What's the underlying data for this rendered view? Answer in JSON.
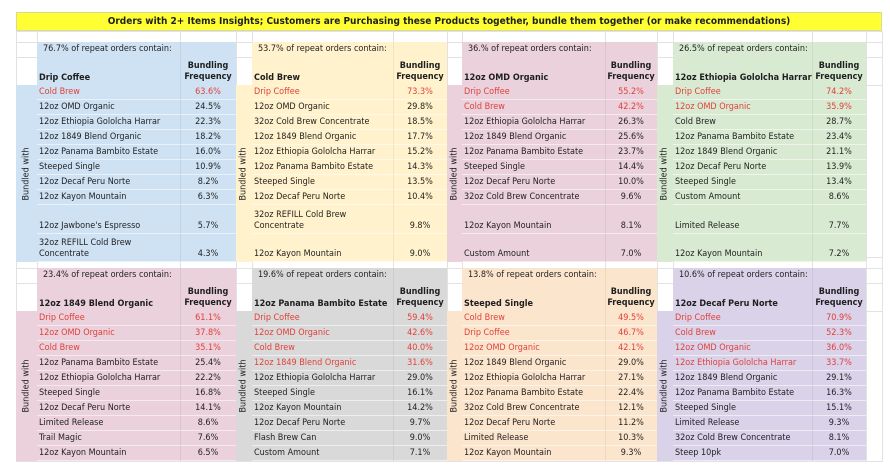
{
  "title": "Orders with 2+ Items Insights; Customers are Purchasing these Products together, bundle them together (or make recommendations)",
  "side_label": "Bundled with",
  "freq_header": "Bundling Frequency",
  "colors": {
    "title_bg": "#ffff33",
    "highlight_text": "#e0403a",
    "blue": "#cfe2f3",
    "yellow": "#fff2cc",
    "pink": "#ead1dc",
    "green": "#d9ead3",
    "gray": "#d9d9d9",
    "orange": "#fce5cd",
    "purple": "#d9d2e9"
  },
  "panels": [
    {
      "product": "Drip Coffee",
      "share": "76.7% of repeat orders contain:",
      "color": "blue",
      "items": [
        {
          "name": "Cold Brew",
          "freq": "63.6%",
          "highlight": true
        },
        {
          "name": "12oz OMD Organic",
          "freq": "24.5%",
          "highlight": false
        },
        {
          "name": "12oz Ethiopia Gololcha Harrar",
          "freq": "22.3%",
          "highlight": false
        },
        {
          "name": "12oz 1849 Blend Organic",
          "freq": "18.2%",
          "highlight": false
        },
        {
          "name": "12oz Panama Bambito Estate",
          "freq": "16.0%",
          "highlight": false
        },
        {
          "name": "Steeped Single",
          "freq": "10.9%",
          "highlight": false
        },
        {
          "name": "12oz Decaf Peru Norte",
          "freq": "8.2%",
          "highlight": false
        },
        {
          "name": "12oz Kayon Mountain",
          "freq": "6.3%",
          "highlight": false
        },
        {
          "name": "12oz Jawbone's Espresso",
          "freq": "5.7%",
          "highlight": false
        },
        {
          "name": "32oz REFILL Cold Brew\nConcentrate",
          "freq": "4.3%",
          "highlight": false
        }
      ]
    },
    {
      "product": "Cold Brew",
      "share": "53.7% of repeat orders contain:",
      "color": "yellow",
      "items": [
        {
          "name": "Drip Coffee",
          "freq": "73.3%",
          "highlight": true
        },
        {
          "name": "12oz OMD Organic",
          "freq": "29.8%",
          "highlight": false
        },
        {
          "name": "32oz Cold Brew Concentrate",
          "freq": "18.5%",
          "highlight": false
        },
        {
          "name": "12oz 1849 Blend Organic",
          "freq": "17.7%",
          "highlight": false
        },
        {
          "name": "12oz Ethiopia Gololcha Harrar",
          "freq": "15.2%",
          "highlight": false
        },
        {
          "name": "12oz Panama Bambito Estate",
          "freq": "14.3%",
          "highlight": false
        },
        {
          "name": "Steeped Single",
          "freq": "13.5%",
          "highlight": false
        },
        {
          "name": "12oz Decaf Peru Norte",
          "freq": "10.4%",
          "highlight": false
        },
        {
          "name": "32oz REFILL Cold Brew\nConcentrate",
          "freq": "9.8%",
          "highlight": false
        },
        {
          "name": "12oz Kayon Mountain",
          "freq": "9.0%",
          "highlight": false
        }
      ]
    },
    {
      "product": "12oz OMD Organic",
      "share": "36.% of repeat orders contain:",
      "color": "pink",
      "items": [
        {
          "name": "Drip Coffee",
          "freq": "55.2%",
          "highlight": true
        },
        {
          "name": "Cold Brew",
          "freq": "42.2%",
          "highlight": true
        },
        {
          "name": "12oz Ethiopia Gololcha Harrar",
          "freq": "26.3%",
          "highlight": false
        },
        {
          "name": "12oz 1849 Blend Organic",
          "freq": "25.6%",
          "highlight": false
        },
        {
          "name": "12oz Panama Bambito Estate",
          "freq": "23.7%",
          "highlight": false
        },
        {
          "name": "Steeped Single",
          "freq": "14.4%",
          "highlight": false
        },
        {
          "name": "12oz Decaf Peru Norte",
          "freq": "10.0%",
          "highlight": false
        },
        {
          "name": "32oz Cold Brew Concentrate",
          "freq": "9.6%",
          "highlight": false
        },
        {
          "name": "12oz Kayon Mountain",
          "freq": "8.1%",
          "highlight": false
        },
        {
          "name": "Custom Amount",
          "freq": "7.0%",
          "highlight": false
        }
      ]
    },
    {
      "product": "12oz Ethiopia Gololcha Harrar",
      "share": "26.5% of repeat orders contain:",
      "color": "green",
      "items": [
        {
          "name": "Drip Coffee",
          "freq": "74.2%",
          "highlight": true
        },
        {
          "name": "12oz OMD Organic",
          "freq": "35.9%",
          "highlight": true
        },
        {
          "name": "Cold Brew",
          "freq": "28.7%",
          "highlight": false
        },
        {
          "name": "12oz Panama Bambito Estate",
          "freq": "23.4%",
          "highlight": false
        },
        {
          "name": "12oz 1849 Blend Organic",
          "freq": "21.1%",
          "highlight": false
        },
        {
          "name": "12oz Decaf Peru Norte",
          "freq": "13.9%",
          "highlight": false
        },
        {
          "name": "Steeped Single",
          "freq": "13.4%",
          "highlight": false
        },
        {
          "name": "Custom Amount",
          "freq": "8.6%",
          "highlight": false
        },
        {
          "name": "Limited Release",
          "freq": "7.7%",
          "highlight": false
        },
        {
          "name": "12oz Kayon Mountain",
          "freq": "7.2%",
          "highlight": false
        }
      ]
    },
    {
      "product": "12oz 1849 Blend Organic",
      "share": "23.4% of repeat orders contain:",
      "color": "pink",
      "items": [
        {
          "name": "Drip Coffee",
          "freq": "61.1%",
          "highlight": true
        },
        {
          "name": "12oz OMD Organic",
          "freq": "37.8%",
          "highlight": true
        },
        {
          "name": "Cold Brew",
          "freq": "35.1%",
          "highlight": true
        },
        {
          "name": "12oz Panama Bambito Estate",
          "freq": "25.4%",
          "highlight": false
        },
        {
          "name": "12oz Ethiopia Gololcha Harrar",
          "freq": "22.2%",
          "highlight": false
        },
        {
          "name": "Steeped Single",
          "freq": "16.8%",
          "highlight": false
        },
        {
          "name": "12oz Decaf Peru Norte",
          "freq": "14.1%",
          "highlight": false
        },
        {
          "name": "Limited Release",
          "freq": "8.6%",
          "highlight": false
        },
        {
          "name": "Trail Magic",
          "freq": "7.6%",
          "highlight": false
        },
        {
          "name": "12oz Kayon Mountain",
          "freq": "6.5%",
          "highlight": false
        }
      ]
    },
    {
      "product": "12oz Panama Bambito Estate",
      "share": "19.6% of repeat orders contain:",
      "color": "gray",
      "items": [
        {
          "name": "Drip Coffee",
          "freq": "59.4%",
          "highlight": true
        },
        {
          "name": "12oz OMD Organic",
          "freq": "42.6%",
          "highlight": true
        },
        {
          "name": "Cold Brew",
          "freq": "40.0%",
          "highlight": true
        },
        {
          "name": "12oz 1849 Blend Organic",
          "freq": "31.6%",
          "highlight": true
        },
        {
          "name": "12oz Ethiopia Gololcha Harrar",
          "freq": "29.0%",
          "highlight": false
        },
        {
          "name": "Steeped Single",
          "freq": "16.1%",
          "highlight": false
        },
        {
          "name": "12oz Kayon Mountain",
          "freq": "14.2%",
          "highlight": false
        },
        {
          "name": "12oz Decaf Peru Norte",
          "freq": "9.7%",
          "highlight": false
        },
        {
          "name": "Flash Brew Can",
          "freq": "9.0%",
          "highlight": false
        },
        {
          "name": "Custom Amount",
          "freq": "7.1%",
          "highlight": false
        }
      ]
    },
    {
      "product": "Steeped Single",
      "share": "13.8% of repeat orders contain:",
      "color": "orange",
      "items": [
        {
          "name": "Cold Brew",
          "freq": "49.5%",
          "highlight": true
        },
        {
          "name": "Drip Coffee",
          "freq": "46.7%",
          "highlight": true
        },
        {
          "name": "12oz OMD Organic",
          "freq": "42.1%",
          "highlight": true
        },
        {
          "name": "12oz 1849 Blend Organic",
          "freq": "29.0%",
          "highlight": false
        },
        {
          "name": "12oz Ethiopia Gololcha Harrar",
          "freq": "27.1%",
          "highlight": false
        },
        {
          "name": "12oz Panama Bambito Estate",
          "freq": "22.4%",
          "highlight": false
        },
        {
          "name": "32oz Cold Brew Concentrate",
          "freq": "12.1%",
          "highlight": false
        },
        {
          "name": "12oz Decaf Peru Norte",
          "freq": "11.2%",
          "highlight": false
        },
        {
          "name": "Limited Release",
          "freq": "10.3%",
          "highlight": false
        },
        {
          "name": "12oz Kayon Mountain",
          "freq": "9.3%",
          "highlight": false
        }
      ]
    },
    {
      "product": "12oz Decaf Peru Norte",
      "share": "10.6% of repeat orders contain:",
      "color": "purple",
      "items": [
        {
          "name": "Drip Coffee",
          "freq": "70.9%",
          "highlight": true
        },
        {
          "name": "Cold Brew",
          "freq": "52.3%",
          "highlight": true
        },
        {
          "name": "12oz OMD Organic",
          "freq": "36.0%",
          "highlight": true
        },
        {
          "name": "12oz Ethiopia Gololcha Harrar",
          "freq": "33.7%",
          "highlight": true
        },
        {
          "name": "12oz 1849 Blend Organic",
          "freq": "29.1%",
          "highlight": false
        },
        {
          "name": "12oz Panama Bambito Estate",
          "freq": "16.3%",
          "highlight": false
        },
        {
          "name": "Steeped Single",
          "freq": "15.1%",
          "highlight": false
        },
        {
          "name": "Limited Release",
          "freq": "9.3%",
          "highlight": false
        },
        {
          "name": "32oz Cold Brew Concentrate",
          "freq": "8.1%",
          "highlight": false
        },
        {
          "name": "Steep 10pk",
          "freq": "7.0%",
          "highlight": false
        }
      ]
    }
  ]
}
